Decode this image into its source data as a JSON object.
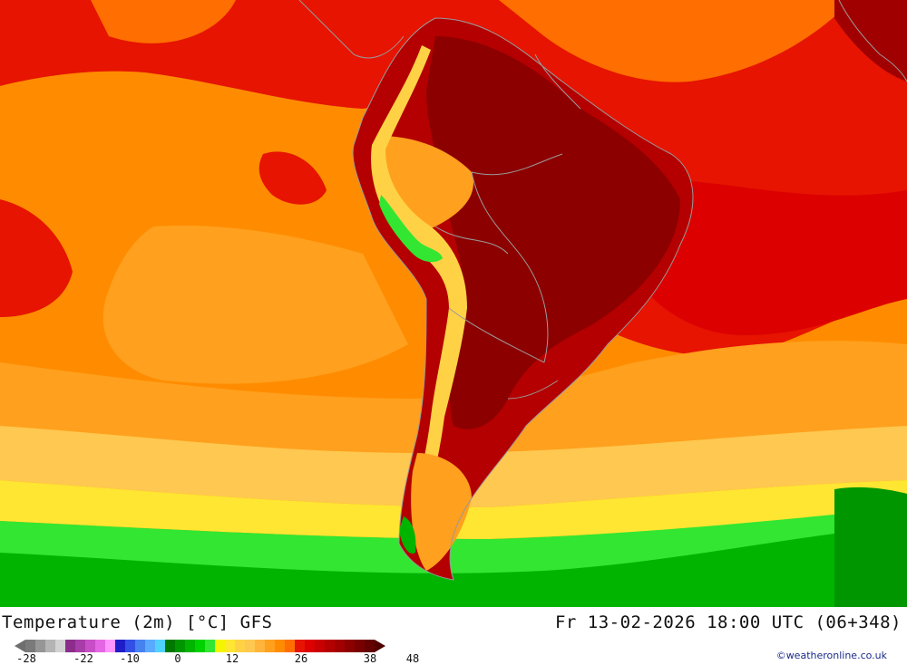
{
  "title": "Temperature (2m) [°C] GFS",
  "valid_time": "Fr 13-02-2026 18:00 UTC (06+348)",
  "credit": "©weatheronline.co.uk",
  "legend": {
    "ticks": [
      "-28",
      "-22",
      "-10",
      "0",
      "12",
      "26",
      "38",
      "48"
    ],
    "colors": [
      "#7a7a7a",
      "#969696",
      "#b4b4b4",
      "#d2d2d2",
      "#8c2d8c",
      "#a83ca8",
      "#c84ec8",
      "#e466e4",
      "#ff96ff",
      "#1e1ec8",
      "#3250e6",
      "#4682f0",
      "#5aaaff",
      "#50d2ff",
      "#007800",
      "#009600",
      "#00b400",
      "#00d200",
      "#32e632",
      "#f5f500",
      "#ffe632",
      "#ffd246",
      "#ffc850",
      "#ffb43c",
      "#ffa01e",
      "#ff8c00",
      "#ff6e00",
      "#e61400",
      "#dc0000",
      "#c80000",
      "#b40000",
      "#a00000",
      "#8c0000",
      "#780000",
      "#640000"
    ]
  },
  "map": {
    "region": "South America",
    "colors": {
      "deep_red": "#8c0000",
      "dark_red": "#b40000",
      "red": "#e61400",
      "orange_red": "#ff6e00",
      "orange": "#ff8c00",
      "light_orange": "#ffa01e",
      "pale_orange": "#ffc850",
      "yellow": "#f5f500",
      "light_green": "#32e632",
      "green": "#00b400",
      "dark_green": "#009600",
      "border": "#9a9a9a"
    }
  }
}
